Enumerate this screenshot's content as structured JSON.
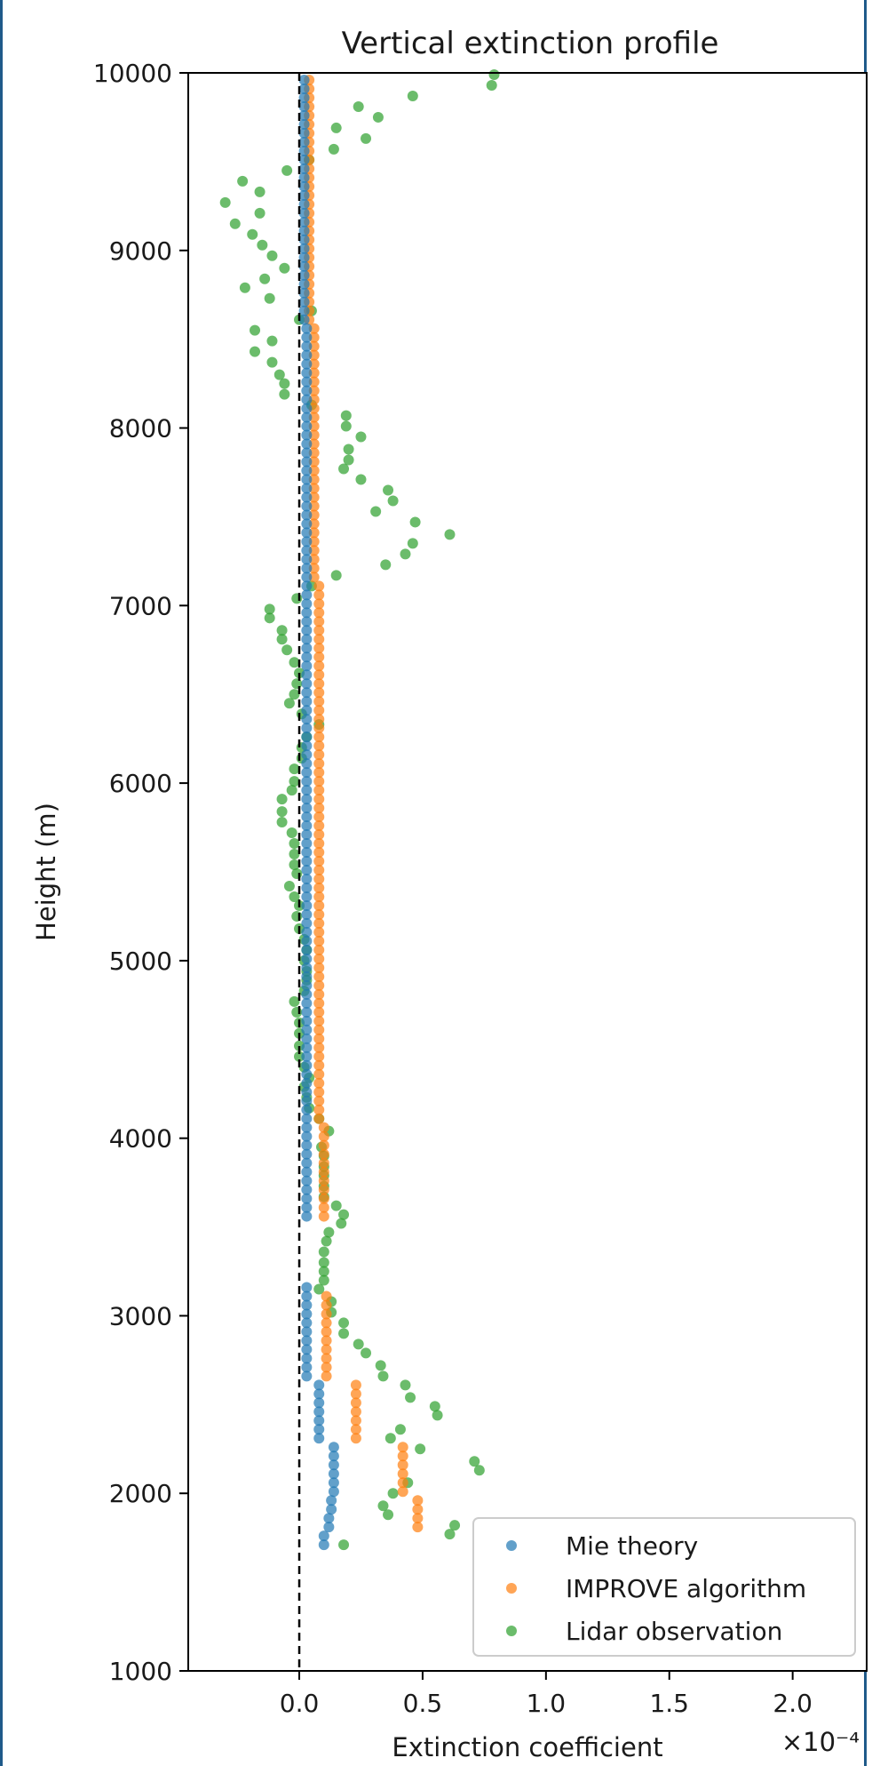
{
  "chart_data": {
    "type": "scatter",
    "title": "Vertical extinction profile",
    "xlabel": "Extinction coefficient",
    "ylabel": "Height (m)",
    "x_scale_label": "×10⁻⁴",
    "x_scale_factor": 0.0001,
    "xlim": [
      -0.45,
      2.3
    ],
    "ylim": [
      1000,
      10000
    ],
    "x_ticks": [
      0.0,
      0.5,
      1.0,
      1.5,
      2.0
    ],
    "x_tick_labels": [
      "0.0",
      "0.5",
      "1.0",
      "1.5",
      "2.0"
    ],
    "y_ticks": [
      1000,
      2000,
      3000,
      4000,
      5000,
      6000,
      7000,
      8000,
      9000,
      10000
    ],
    "y_tick_labels": [
      "1000",
      "2000",
      "3000",
      "4000",
      "5000",
      "6000",
      "7000",
      "8000",
      "9000",
      "10000"
    ],
    "zero_reference_line": 0.0,
    "grid": false,
    "legend_position": "lower-right",
    "series": [
      {
        "name": "Mie theory",
        "color": "#1f77b4",
        "segments": [
          {
            "x": 0.1,
            "y_from": 1710,
            "y_to": 1760
          },
          {
            "x": 0.12,
            "y_from": 1810,
            "y_to": 1860
          },
          {
            "x": 0.13,
            "y_from": 1910,
            "y_to": 1960
          },
          {
            "x": 0.14,
            "y_from": 2010,
            "y_to": 2260
          },
          {
            "x": 0.08,
            "y_from": 2310,
            "y_to": 2610
          },
          {
            "x": 0.03,
            "y_from": 2660,
            "y_to": 3160
          },
          {
            "x": 0.03,
            "y_from": 3560,
            "y_to": 8560
          },
          {
            "x": 0.02,
            "y_from": 8610,
            "y_to": 10000
          }
        ]
      },
      {
        "name": "IMPROVE algorithm",
        "color": "#ff7f0e",
        "segments": [
          {
            "x": 0.48,
            "y_from": 1810,
            "y_to": 1960
          },
          {
            "x": 0.42,
            "y_from": 2010,
            "y_to": 2260
          },
          {
            "x": 0.23,
            "y_from": 2310,
            "y_to": 2610
          },
          {
            "x": 0.11,
            "y_from": 2660,
            "y_to": 3110
          },
          {
            "x": 0.1,
            "y_from": 3560,
            "y_to": 4060
          },
          {
            "x": 0.08,
            "y_from": 4110,
            "y_to": 7110
          },
          {
            "x": 0.06,
            "y_from": 7160,
            "y_to": 8560
          },
          {
            "x": 0.04,
            "y_from": 8610,
            "y_to": 10000
          }
        ]
      },
      {
        "name": "Lidar observation",
        "color": "#2ca02c",
        "points": [
          [
            0.18,
            1710
          ],
          [
            0.61,
            1770
          ],
          [
            0.63,
            1820
          ],
          [
            0.36,
            1880
          ],
          [
            0.34,
            1930
          ],
          [
            0.38,
            2000
          ],
          [
            0.44,
            2060
          ],
          [
            0.73,
            2130
          ],
          [
            0.71,
            2180
          ],
          [
            0.49,
            2250
          ],
          [
            0.41,
            2360
          ],
          [
            0.37,
            2310
          ],
          [
            0.56,
            2440
          ],
          [
            0.55,
            2490
          ],
          [
            0.45,
            2540
          ],
          [
            0.43,
            2610
          ],
          [
            0.34,
            2660
          ],
          [
            0.33,
            2720
          ],
          [
            0.27,
            2790
          ],
          [
            0.24,
            2840
          ],
          [
            0.18,
            2900
          ],
          [
            0.18,
            2960
          ],
          [
            0.13,
            3020
          ],
          [
            0.13,
            3080
          ],
          [
            0.08,
            3150
          ],
          [
            0.1,
            3200
          ],
          [
            0.1,
            3250
          ],
          [
            0.1,
            3300
          ],
          [
            0.1,
            3360
          ],
          [
            0.11,
            3420
          ],
          [
            0.12,
            3470
          ],
          [
            0.17,
            3520
          ],
          [
            0.18,
            3570
          ],
          [
            0.15,
            3620
          ],
          [
            0.1,
            3670
          ],
          [
            0.1,
            3730
          ],
          [
            0.1,
            3790
          ],
          [
            0.1,
            3840
          ],
          [
            0.1,
            3900
          ],
          [
            0.09,
            3950
          ],
          [
            0.12,
            4040
          ],
          [
            0.08,
            4110
          ],
          [
            0.04,
            4170
          ],
          [
            0.03,
            4230
          ],
          [
            0.02,
            4290
          ],
          [
            0.04,
            4340
          ],
          [
            0.02,
            4400
          ],
          [
            0.0,
            4460
          ],
          [
            0.0,
            4520
          ],
          [
            0.0,
            4590
          ],
          [
            0.0,
            4650
          ],
          [
            -0.01,
            4710
          ],
          [
            -0.02,
            4770
          ],
          [
            0.02,
            4830
          ],
          [
            0.03,
            4890
          ],
          [
            0.03,
            4940
          ],
          [
            0.02,
            5000
          ],
          [
            0.03,
            5060
          ],
          [
            0.02,
            5120
          ],
          [
            0.0,
            5180
          ],
          [
            -0.01,
            5250
          ],
          [
            0.0,
            5310
          ],
          [
            -0.02,
            5360
          ],
          [
            -0.04,
            5420
          ],
          [
            -0.01,
            5490
          ],
          [
            -0.02,
            5540
          ],
          [
            -0.02,
            5600
          ],
          [
            -0.02,
            5660
          ],
          [
            -0.03,
            5720
          ],
          [
            -0.07,
            5780
          ],
          [
            -0.07,
            5840
          ],
          [
            -0.07,
            5910
          ],
          [
            -0.03,
            5960
          ],
          [
            -0.02,
            6010
          ],
          [
            -0.02,
            6080
          ],
          [
            0.01,
            6140
          ],
          [
            0.01,
            6200
          ],
          [
            0.03,
            6260
          ],
          [
            0.08,
            6330
          ],
          [
            0.01,
            6390
          ],
          [
            -0.04,
            6450
          ],
          [
            -0.02,
            6500
          ],
          [
            -0.01,
            6560
          ],
          [
            0.0,
            6620
          ],
          [
            -0.02,
            6680
          ],
          [
            -0.05,
            6750
          ],
          [
            -0.07,
            6810
          ],
          [
            -0.07,
            6860
          ],
          [
            -0.12,
            6930
          ],
          [
            -0.12,
            6980
          ],
          [
            -0.01,
            7040
          ],
          [
            0.05,
            7110
          ],
          [
            0.15,
            7170
          ],
          [
            0.35,
            7230
          ],
          [
            0.43,
            7290
          ],
          [
            0.46,
            7350
          ],
          [
            0.61,
            7400
          ],
          [
            0.47,
            7470
          ],
          [
            0.31,
            7530
          ],
          [
            0.38,
            7590
          ],
          [
            0.36,
            7650
          ],
          [
            0.25,
            7710
          ],
          [
            0.18,
            7770
          ],
          [
            0.2,
            7820
          ],
          [
            0.2,
            7880
          ],
          [
            0.25,
            7950
          ],
          [
            0.19,
            8010
          ],
          [
            0.19,
            8070
          ],
          [
            0.05,
            8130
          ],
          [
            -0.06,
            8190
          ],
          [
            -0.06,
            8250
          ],
          [
            -0.08,
            8300
          ],
          [
            -0.11,
            8370
          ],
          [
            -0.18,
            8430
          ],
          [
            -0.11,
            8490
          ],
          [
            -0.18,
            8550
          ],
          [
            0.0,
            8610
          ],
          [
            0.05,
            8660
          ],
          [
            -0.12,
            8730
          ],
          [
            -0.22,
            8790
          ],
          [
            -0.14,
            8840
          ],
          [
            -0.06,
            8900
          ],
          [
            -0.11,
            8970
          ],
          [
            -0.15,
            9030
          ],
          [
            -0.19,
            9090
          ],
          [
            -0.26,
            9150
          ],
          [
            -0.16,
            9210
          ],
          [
            -0.3,
            9270
          ],
          [
            -0.16,
            9330
          ],
          [
            -0.23,
            9390
          ],
          [
            -0.05,
            9450
          ],
          [
            0.04,
            9510
          ],
          [
            0.14,
            9570
          ],
          [
            0.27,
            9630
          ],
          [
            0.15,
            9690
          ],
          [
            0.32,
            9750
          ],
          [
            0.24,
            9810
          ],
          [
            0.46,
            9870
          ],
          [
            0.78,
            9930
          ],
          [
            0.79,
            9990
          ]
        ]
      }
    ]
  }
}
